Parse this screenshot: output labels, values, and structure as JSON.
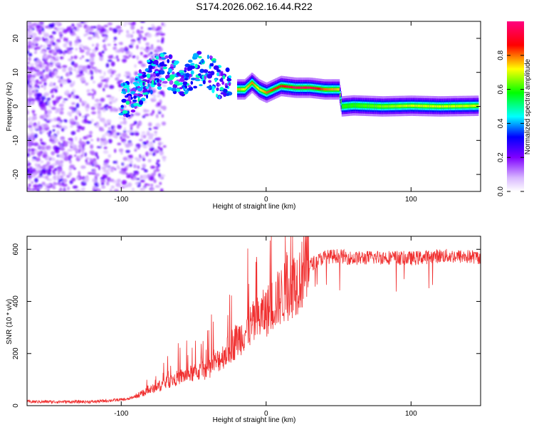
{
  "title": "S174.2026.062.16.44.R22",
  "chart_data": [
    {
      "type": "heatmap",
      "title": "S174.2026.062.16.44.R22",
      "xlabel": "Height of straight line (km)",
      "ylabel": "Frequency (Hz)",
      "xlim": [
        -165,
        148
      ],
      "ylim": [
        -25,
        25
      ],
      "xticks": [
        -100,
        0,
        100
      ],
      "xtick_labels": [
        "-100",
        "0",
        "100"
      ],
      "yticks": [
        -20,
        -10,
        0,
        10,
        20
      ],
      "ytick_labels": [
        "-20",
        "-10",
        "0",
        "10",
        "20"
      ],
      "colorbar": {
        "label": "Normalized spectral amplitude",
        "range": [
          0,
          1
        ],
        "ticks": [
          0.0,
          0.2,
          0.4,
          0.6,
          0.8
        ],
        "tick_labels": [
          "0.0",
          "0.2",
          "0.4",
          "0.6",
          "0.8"
        ]
      },
      "ridge": {
        "x": [
          -95,
          -88,
          -80,
          -70,
          -60,
          -50,
          -42,
          -35,
          -28,
          -22,
          -15,
          -10,
          -5,
          0,
          5,
          10,
          20,
          30,
          40,
          50,
          52,
          60,
          80,
          100,
          120,
          148
        ],
        "y": [
          2,
          5,
          9,
          11,
          8,
          10,
          12,
          8,
          6,
          5,
          5,
          7,
          5,
          4,
          5,
          6,
          5.5,
          5.5,
          5,
          5,
          0,
          0.3,
          0,
          0.2,
          0,
          0.2
        ],
        "strength": [
          0.5,
          0.6,
          0.6,
          0.6,
          0.55,
          0.6,
          0.6,
          0.6,
          0.7,
          0.8,
          0.7,
          0.8,
          0.7,
          0.8,
          0.85,
          0.85,
          0.95,
          0.95,
          0.8,
          0.75,
          0.6,
          0.6,
          0.65,
          0.7,
          0.7,
          0.7
        ]
      }
    },
    {
      "type": "line",
      "xlabel": "Height of straight line (km)",
      "ylabel": "SNR (10 * v/v)",
      "xlim": [
        -165,
        148
      ],
      "ylim": [
        0,
        650
      ],
      "xticks": [
        -100,
        0,
        100
      ],
      "xtick_labels": [
        "-100",
        "0",
        "100"
      ],
      "yticks": [
        0,
        200,
        400,
        600
      ],
      "ytick_labels": [
        "0",
        "200",
        "400",
        "600"
      ],
      "color": "#f03030",
      "trend": {
        "x": [
          -165,
          -120,
          -95,
          -80,
          -60,
          -40,
          -30,
          -20,
          -10,
          0,
          10,
          20,
          30,
          40,
          50,
          60,
          80,
          100,
          120,
          148
        ],
        "y": [
          15,
          15,
          25,
          60,
          110,
          140,
          190,
          250,
          310,
          360,
          420,
          470,
          540,
          570,
          575,
          565,
          570,
          565,
          575,
          570
        ]
      }
    }
  ]
}
